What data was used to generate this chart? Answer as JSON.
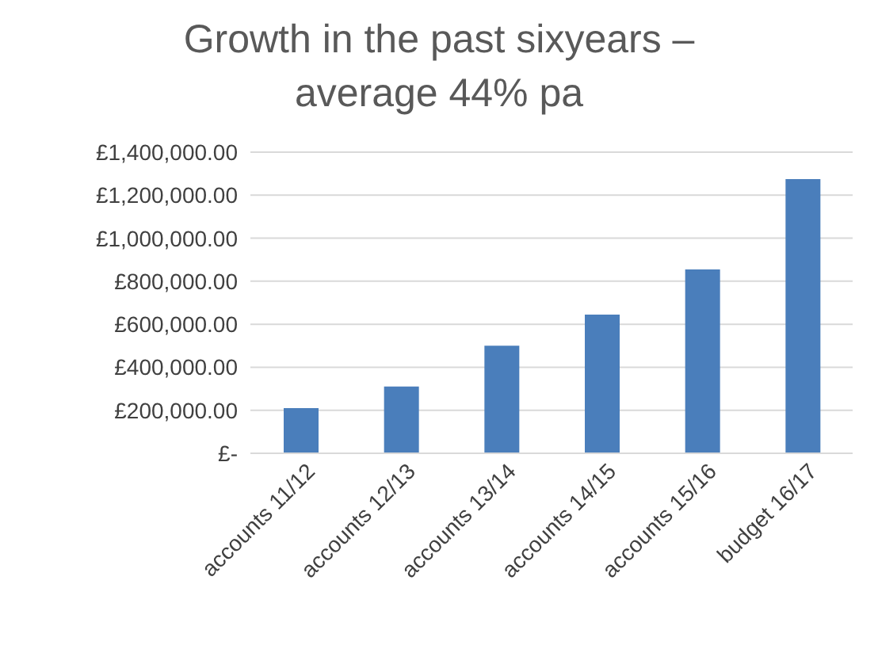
{
  "chart_data": {
    "type": "bar",
    "title": "Growth in the past sixyears –\naverage 44% pa",
    "categories": [
      "accounts 11/12",
      "accounts 12/13",
      "accounts 13/14",
      "accounts 14/15",
      "accounts 15/16",
      "budget 16/17"
    ],
    "values": [
      210000,
      310000,
      500000,
      645000,
      855000,
      1275000
    ],
    "color": "#4a7ebb",
    "ylim": [
      0,
      1400000
    ],
    "yticks": [
      {
        "value": 0,
        "label": "£-"
      },
      {
        "value": 200000,
        "label": "£200,000.00"
      },
      {
        "value": 400000,
        "label": "£400,000.00"
      },
      {
        "value": 600000,
        "label": "£600,000.00"
      },
      {
        "value": 800000,
        "label": "£800,000.00"
      },
      {
        "value": 1000000,
        "label": "£1,000,000.00"
      },
      {
        "value": 1200000,
        "label": "£1,200,000.00"
      },
      {
        "value": 1400000,
        "label": "£1,400,000.00"
      }
    ],
    "grid": "y"
  }
}
